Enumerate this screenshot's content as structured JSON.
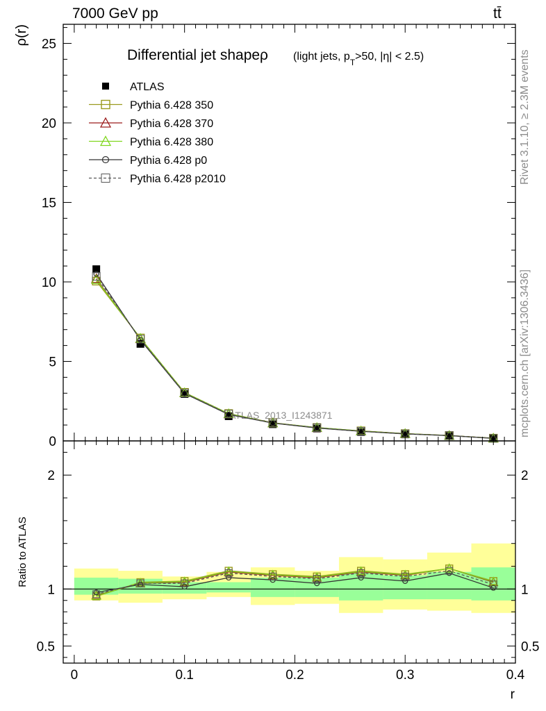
{
  "header": {
    "left": "7000 GeV pp",
    "right": "tt̄"
  },
  "side_labels": {
    "rivet": "Rivet 3.1.10, ≥ 2.3M events",
    "mcplots": "mcplots.cern.ch [arXiv:1306.3436]"
  },
  "watermark": "ATLAS_2013_I1243871",
  "chart_data": [
    {
      "type": "line",
      "title": "Differential jet shapeρ",
      "subtitle": "(light jets, p_T>50, |η| < 2.5)",
      "ylabel": "ρ(r)",
      "xlabel": "",
      "xlim": [
        -0.01,
        0.4
      ],
      "ylim": [
        0,
        26.2
      ],
      "yticks": [
        0,
        5,
        10,
        15,
        20,
        25
      ],
      "x": [
        0.02,
        0.06,
        0.1,
        0.14,
        0.18,
        0.22,
        0.26,
        0.3,
        0.34,
        0.38
      ],
      "series": [
        {
          "name": "ATLAS",
          "color": "#000000",
          "marker": "filled-square",
          "values": [
            10.8,
            6.1,
            2.95,
            1.55,
            1.05,
            0.78,
            0.56,
            0.41,
            0.3,
            0.16
          ]
        },
        {
          "name": "Pythia 6.428 350",
          "color": "#9a9a1e",
          "marker": "open-square",
          "values": [
            10.05,
            6.47,
            3.05,
            1.72,
            1.14,
            0.84,
            0.63,
            0.46,
            0.34,
            0.17
          ]
        },
        {
          "name": "Pythia 6.428 370",
          "color": "#9b1b1b",
          "marker": "open-triangle",
          "values": [
            10.2,
            6.42,
            3.02,
            1.7,
            1.13,
            0.83,
            0.62,
            0.46,
            0.34,
            0.17
          ]
        },
        {
          "name": "Pythia 6.428 380",
          "color": "#7fd61e",
          "marker": "open-triangle",
          "values": [
            10.15,
            6.45,
            3.03,
            1.71,
            1.13,
            0.84,
            0.62,
            0.46,
            0.34,
            0.17
          ]
        },
        {
          "name": "Pythia 6.428 p0",
          "color": "#333333",
          "marker": "open-circle",
          "values": [
            10.5,
            6.35,
            2.98,
            1.66,
            1.12,
            0.81,
            0.6,
            0.44,
            0.33,
            0.16
          ]
        },
        {
          "name": "Pythia 6.428 p2010",
          "color": "#555555",
          "marker": "open-square-dashed",
          "values": [
            10.35,
            6.4,
            3.01,
            1.69,
            1.13,
            0.83,
            0.61,
            0.45,
            0.34,
            0.16
          ]
        }
      ]
    },
    {
      "type": "line",
      "ylabel": "Ratio to ATLAS",
      "xlabel": "r",
      "xlim": [
        -0.01,
        0.4
      ],
      "ylim": [
        0.35,
        2.3
      ],
      "yticks": [
        0.5,
        1,
        2
      ],
      "xticks": [
        0,
        0.1,
        0.2,
        0.3,
        0.4
      ],
      "x": [
        0.02,
        0.06,
        0.1,
        0.14,
        0.18,
        0.22,
        0.26,
        0.3,
        0.34,
        0.38
      ],
      "bin_edges": [
        0.0,
        0.04,
        0.08,
        0.12,
        0.16,
        0.2,
        0.24,
        0.28,
        0.32,
        0.36,
        0.4
      ],
      "band_stat": {
        "color": "#99ff99",
        "low": [
          0.95,
          0.96,
          0.96,
          0.97,
          0.93,
          0.93,
          0.9,
          0.91,
          0.91,
          0.9
        ],
        "high": [
          1.1,
          1.09,
          1.06,
          1.06,
          1.1,
          1.1,
          1.14,
          1.12,
          1.15,
          1.19
        ]
      },
      "band_total": {
        "color": "#ffff99",
        "low": [
          0.9,
          0.88,
          0.91,
          0.93,
          0.86,
          0.87,
          0.79,
          0.82,
          0.81,
          0.79
        ],
        "high": [
          1.18,
          1.16,
          1.11,
          1.15,
          1.19,
          1.16,
          1.28,
          1.26,
          1.32,
          1.4
        ]
      },
      "series": [
        {
          "name": "Pythia 6.428 350",
          "color": "#9a9a1e",
          "values": [
            0.935,
            1.06,
            1.07,
            1.16,
            1.13,
            1.11,
            1.16,
            1.13,
            1.18,
            1.07
          ]
        },
        {
          "name": "Pythia 6.428 370",
          "color": "#9b1b1b",
          "values": [
            0.945,
            1.05,
            1.06,
            1.15,
            1.12,
            1.1,
            1.15,
            1.12,
            1.18,
            1.06
          ]
        },
        {
          "name": "Pythia 6.428 380",
          "color": "#7fd61e",
          "values": [
            0.94,
            1.055,
            1.065,
            1.155,
            1.125,
            1.105,
            1.155,
            1.125,
            1.18,
            1.065
          ]
        },
        {
          "name": "Pythia 6.428 p0",
          "color": "#333333",
          "values": [
            0.97,
            1.04,
            1.02,
            1.1,
            1.08,
            1.05,
            1.1,
            1.07,
            1.14,
            1.01
          ]
        },
        {
          "name": "Pythia 6.428 p2010",
          "color": "#555555",
          "values": [
            0.955,
            1.05,
            1.05,
            1.14,
            1.11,
            1.09,
            1.14,
            1.11,
            1.16,
            1.04
          ]
        }
      ]
    }
  ]
}
